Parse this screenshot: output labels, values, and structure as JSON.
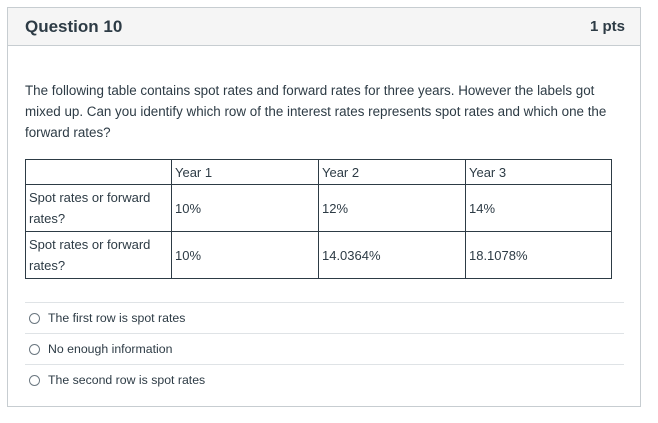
{
  "question": {
    "title": "Question 10",
    "points": "1 pts",
    "text": "The following table contains spot rates and forward rates for three years. However the labels got mixed up. Can you identify which row of the interest rates represents spot rates and which one the forward rates?"
  },
  "table": {
    "headers": [
      "",
      "Year 1",
      "Year 2",
      "Year 3"
    ],
    "rows": [
      [
        "Spot rates or forward rates?",
        "10%",
        "12%",
        "14%"
      ],
      [
        "Spot rates or forward rates?",
        "10%",
        "14.0364%",
        "18.1078%"
      ]
    ]
  },
  "answers": [
    {
      "label": "The first row is spot rates",
      "selected": false
    },
    {
      "label": "No enough information",
      "selected": false
    },
    {
      "label": "The second row is spot rates",
      "selected": false
    }
  ]
}
